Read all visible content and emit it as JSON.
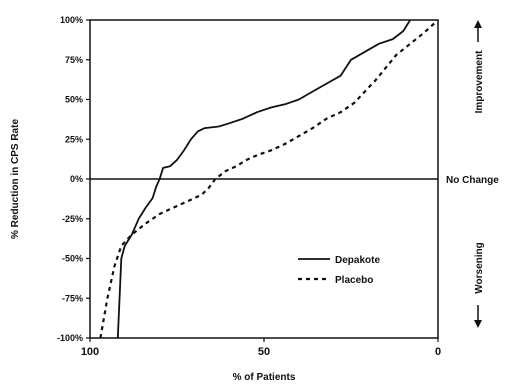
{
  "chart_data": {
    "type": "line",
    "title": "",
    "xlabel": "% of Patients",
    "ylabel": "% Reduction in CPS Rate",
    "xlim": [
      100,
      0
    ],
    "ylim": [
      -100,
      100
    ],
    "x_reversed": true,
    "x_ticks": [
      "100",
      "50",
      "0"
    ],
    "y_ticks": [
      "100%",
      "75%",
      "50%",
      "25%",
      "0%",
      "-25%",
      "-50%",
      "-75%",
      "-100%"
    ],
    "reference_line": {
      "y": 0,
      "label": "No Change"
    },
    "side_labels": {
      "top": "Improvement",
      "bottom": "Worsening"
    },
    "grid": false,
    "legend": "bottom-right",
    "series": [
      {
        "name": "Depakote",
        "style": "solid",
        "points": [
          [
            92,
            -100
          ],
          [
            91,
            -50
          ],
          [
            90,
            -42
          ],
          [
            88,
            -35
          ],
          [
            86,
            -25
          ],
          [
            84,
            -18
          ],
          [
            82,
            -12
          ],
          [
            81,
            -5
          ],
          [
            80,
            0
          ],
          [
            79,
            7
          ],
          [
            77,
            8
          ],
          [
            75,
            12
          ],
          [
            73,
            18
          ],
          [
            71,
            25
          ],
          [
            69,
            30
          ],
          [
            67,
            32
          ],
          [
            63,
            33
          ],
          [
            60,
            35
          ],
          [
            56,
            38
          ],
          [
            52,
            42
          ],
          [
            48,
            45
          ],
          [
            44,
            47
          ],
          [
            40,
            50
          ],
          [
            36,
            55
          ],
          [
            32,
            60
          ],
          [
            28,
            65
          ],
          [
            25,
            75
          ],
          [
            21,
            80
          ],
          [
            17,
            85
          ],
          [
            13,
            88
          ],
          [
            10,
            93
          ],
          [
            8,
            100
          ]
        ]
      },
      {
        "name": "Placebo",
        "style": "dashed",
        "points": [
          [
            97,
            -100
          ],
          [
            95,
            -75
          ],
          [
            93,
            -55
          ],
          [
            91,
            -42
          ],
          [
            88,
            -35
          ],
          [
            84,
            -28
          ],
          [
            80,
            -22
          ],
          [
            76,
            -18
          ],
          [
            72,
            -14
          ],
          [
            68,
            -10
          ],
          [
            66,
            -6
          ],
          [
            64,
            0
          ],
          [
            61,
            5
          ],
          [
            58,
            8
          ],
          [
            55,
            12
          ],
          [
            52,
            15
          ],
          [
            48,
            18
          ],
          [
            44,
            22
          ],
          [
            40,
            27
          ],
          [
            36,
            32
          ],
          [
            32,
            38
          ],
          [
            28,
            42
          ],
          [
            24,
            48
          ],
          [
            21,
            55
          ],
          [
            18,
            62
          ],
          [
            15,
            70
          ],
          [
            12,
            78
          ],
          [
            8,
            85
          ],
          [
            4,
            92
          ],
          [
            0,
            100
          ]
        ]
      }
    ]
  }
}
